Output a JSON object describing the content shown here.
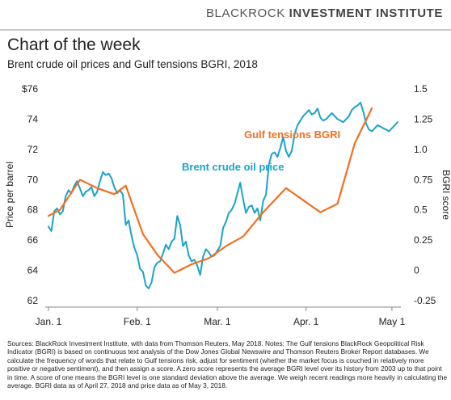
{
  "brand": {
    "light": "BLACKROCK",
    "bold": "INVESTMENT INSTITUTE"
  },
  "title": "Chart of the week",
  "subtitle": "Brent crude oil prices and Gulf tensions BGRI, 2018",
  "footnote": "Sources: BlackRock Investment Institute, with data from Thomson Reuters, May 2018. Notes: The Gulf tensions BlackRock Geopolitical Risk Indicator (BGRI) is based on continuous text analysis of the Dow Jones Global Newswire and Thomson Reuters Broker Report databases. We calculate the frequency of words that relate to Gulf tensions risk, adjust for sentiment (whether the market focus is couched in relatively more positive or negative sentiment), and then assign a score. A zero score represents the average BGRI level over its history from 2003 up to that point in time. A score of one means the BGRI level is one standard deviation above the average. We weigh recent readings more heavily in calculating the average. BGRI data as of April 27, 2018 and price data as of May 3, 2018.",
  "colors": {
    "oil": "#1aa3c8",
    "bgri": "#f26f21",
    "axis": "#888888"
  },
  "chart_data": {
    "type": "line",
    "x_ticks": [
      "Jan. 1",
      "Feb. 1",
      "Mar. 1",
      "Apr. 1",
      "May 1"
    ],
    "x_tick_days": [
      0,
      31,
      59,
      90,
      120
    ],
    "y_left": {
      "label": "Price per barrel",
      "ticks": [
        "$76",
        "74",
        "72",
        "70",
        "68",
        "66",
        "64",
        "62"
      ],
      "tick_values": [
        76,
        74,
        72,
        70,
        68,
        66,
        64,
        62
      ],
      "lim": [
        62,
        76
      ]
    },
    "y_right": {
      "label": "BGRI score",
      "ticks": [
        "1.5",
        "1.25",
        "1.0",
        "0.75",
        "0.5",
        "0.25",
        "0",
        "-0.25"
      ],
      "tick_values": [
        1.5,
        1.25,
        1.0,
        0.75,
        0.5,
        0.25,
        0,
        -0.25
      ],
      "lim": [
        -0.25,
        1.5
      ]
    },
    "series": [
      {
        "name": "Brent crude oil price",
        "axis": "left",
        "x": [
          0,
          1,
          2,
          3,
          4,
          5,
          6,
          7,
          8,
          9,
          10,
          11,
          12,
          13,
          14,
          15,
          16,
          17,
          18,
          19,
          20,
          21,
          22,
          23,
          24,
          25,
          26,
          27,
          28,
          29,
          30,
          31,
          32,
          33,
          34,
          35,
          36,
          37,
          38,
          39,
          40,
          41,
          42,
          43,
          44,
          45,
          46,
          47,
          48,
          49,
          50,
          51,
          52,
          53,
          54,
          55,
          56,
          57,
          58,
          59,
          60,
          61,
          62,
          63,
          64,
          65,
          66,
          67,
          68,
          69,
          70,
          71,
          72,
          73,
          74,
          75,
          76,
          77,
          78,
          79,
          80,
          81,
          82,
          83,
          84,
          85,
          86,
          87,
          88,
          89,
          90,
          91,
          92,
          93,
          94,
          95,
          96,
          97,
          98,
          99,
          100,
          101,
          102,
          103,
          104,
          105,
          106,
          107,
          108,
          109,
          110,
          111,
          112,
          113,
          114,
          115,
          116,
          117,
          118,
          119,
          120,
          121,
          122
        ],
        "values": [
          66.9,
          66.6,
          67.9,
          68.1,
          67.7,
          67.9,
          68.9,
          69.3,
          69.1,
          69.6,
          69.9,
          69.4,
          68.9,
          69.2,
          69.3,
          69.5,
          68.9,
          69.2,
          69.9,
          70.5,
          70.3,
          70.4,
          70.1,
          69.5,
          69.1,
          69.3,
          69.0,
          67.0,
          67.3,
          66.3,
          65.5,
          65.0,
          64.1,
          63.9,
          63.0,
          62.8,
          63.2,
          64.2,
          64.5,
          64.6,
          65.1,
          65.7,
          65.4,
          65.9,
          66.1,
          67.6,
          67.0,
          65.6,
          65.9,
          65.0,
          64.6,
          64.7,
          64.3,
          63.7,
          64.9,
          65.4,
          65.2,
          64.9,
          65.0,
          65.3,
          65.6,
          66.8,
          67.2,
          67.8,
          68.0,
          68.4,
          69.1,
          69.8,
          68.7,
          67.8,
          68.2,
          68.3,
          67.8,
          68.1,
          67.3,
          68.6,
          69.0,
          71.0,
          71.7,
          71.8,
          71.5,
          72.1,
          72.8,
          71.9,
          71.5,
          71.9,
          73.0,
          73.6,
          73.9,
          74.2,
          74.4,
          74.6,
          74.3,
          74.4,
          74.7,
          74.1,
          73.9,
          74.0,
          74.2,
          74.4,
          74.2,
          74.0,
          73.9,
          73.8,
          74.0,
          74.2,
          74.6,
          74.8,
          74.9,
          75.1,
          74.5,
          73.7,
          73.3,
          73.2,
          73.4,
          73.6,
          73.5,
          73.4,
          73.3,
          73.2,
          73.4,
          73.6,
          73.8
        ]
      },
      {
        "name": "Gulf tensions BGRI",
        "axis": "right",
        "x": [
          0,
          4,
          11,
          17,
          23,
          27,
          33,
          38,
          44,
          50,
          56,
          62,
          68,
          75,
          83,
          89,
          95,
          101,
          107,
          113
        ],
        "values": [
          0.45,
          0.5,
          0.75,
          0.68,
          0.63,
          0.7,
          0.3,
          0.13,
          -0.02,
          0.05,
          0.1,
          0.2,
          0.28,
          0.48,
          0.68,
          0.58,
          0.48,
          0.55,
          1.05,
          1.34
        ]
      }
    ]
  },
  "annotations": {
    "bgri_label": "Gulf tensions BGRI",
    "oil_label": "Brent crude oil price"
  }
}
